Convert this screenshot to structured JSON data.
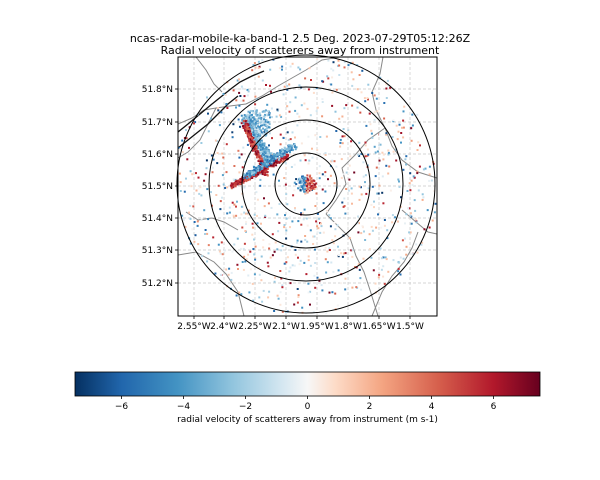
{
  "title": {
    "line1": "ncas-radar-mobile-ka-band-1 2.5 Deg. 2023-07-29T05:12:26Z",
    "line2": "Radial velocity of scatterers away from instrument"
  },
  "map": {
    "lat_ticks": [
      "51.8°N",
      "51.7°N",
      "51.6°N",
      "51.5°N",
      "51.4°N",
      "51.3°N",
      "51.2°N"
    ],
    "lon_ticks": [
      "2.55°W",
      "2.4°W",
      "2.25°W",
      "2.1°W",
      "1.95°W",
      "1.8°W",
      "1.65°W",
      "1.5°W"
    ],
    "range_rings": 4,
    "gridlines": true,
    "gridline_style": "dashed light grey",
    "boundaries": "county borders (grey) and coastline (black)"
  },
  "colorbar": {
    "label": "radial velocity of scatterers away from instrument (m s-1)",
    "ticks": [
      "−6",
      "−4",
      "−2",
      "0",
      "2",
      "4",
      "6"
    ],
    "range": [
      -7.5,
      7.5
    ],
    "colormap": "RdBu_r",
    "colors": {
      "min": "#053061",
      "blue": "#2166ac",
      "light_blue": "#92c5de",
      "white": "#f7f7f7",
      "light_red": "#f4a582",
      "red": "#b2182b",
      "max": "#67001f"
    }
  }
}
